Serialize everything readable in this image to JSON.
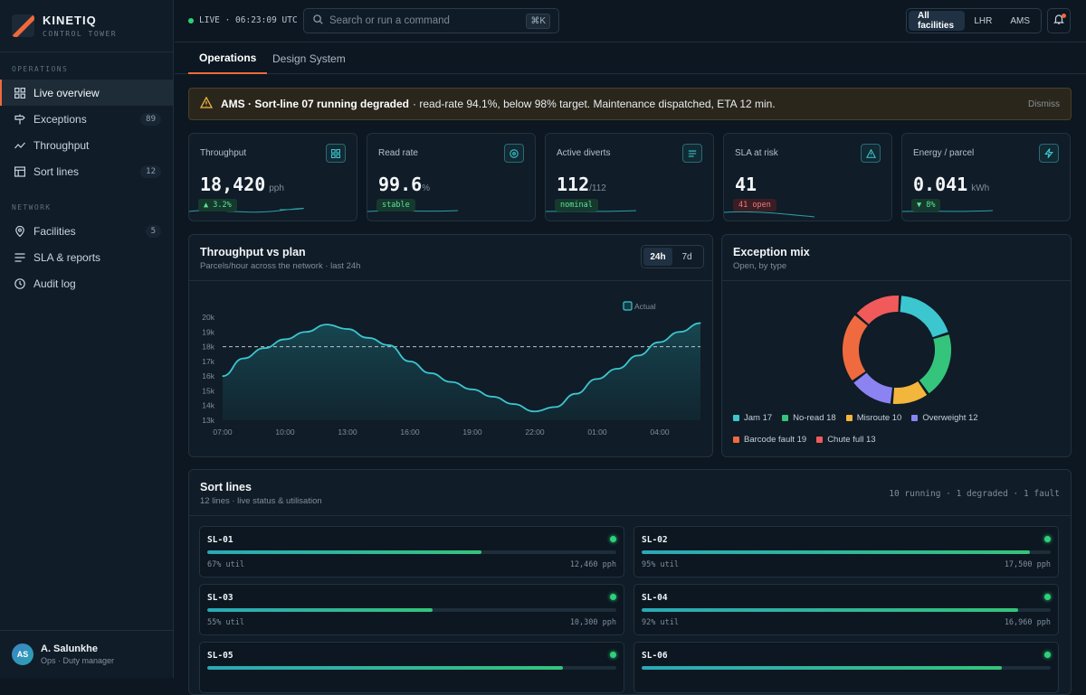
{
  "brand": {
    "name": "KINETIQ",
    "subtitle": "CONTROL TOWER"
  },
  "sidebar": {
    "sections": [
      {
        "label": "OPERATIONS",
        "items": [
          {
            "label": "Live overview",
            "icon": "grid-icon",
            "active": true
          },
          {
            "label": "Exceptions",
            "icon": "signpost-icon",
            "badge": "89"
          },
          {
            "label": "Throughput",
            "icon": "trend-icon"
          },
          {
            "label": "Sort lines",
            "icon": "table-icon",
            "badge": "12"
          }
        ]
      },
      {
        "label": "NETWORK",
        "items": [
          {
            "label": "Facilities",
            "icon": "pin-icon",
            "badge": "5"
          },
          {
            "label": "SLA & reports",
            "icon": "list-icon"
          },
          {
            "label": "Audit log",
            "icon": "clock-icon"
          }
        ]
      }
    ],
    "user": {
      "initials": "AS",
      "name": "A. Salunkhe",
      "role": "Ops · Duty manager"
    }
  },
  "topbar": {
    "live_text": "LIVE · 06:23:09 UTC",
    "search_placeholder": "Search or run a command",
    "search_shortcut": "⌘K",
    "facilities": [
      {
        "label": "All facilities",
        "active": true
      },
      {
        "label": "LHR"
      },
      {
        "label": "AMS"
      }
    ]
  },
  "tabs": [
    {
      "label": "Operations",
      "active": true
    },
    {
      "label": "Design System"
    }
  ],
  "alert": {
    "title": "AMS · Sort-line 07 running degraded",
    "message": "· read-rate 94.1%, below 98% target. Maintenance dispatched, ETA 12 min.",
    "dismiss": "Dismiss"
  },
  "kpis": [
    {
      "label": "Throughput",
      "value": "18,420",
      "unit": "pph",
      "pill": "▲ 3.2%",
      "pill_style": "green",
      "icon": "grid-icon"
    },
    {
      "label": "Read rate",
      "value": "99.6",
      "unit": "%",
      "pill": "stable",
      "pill_style": "green",
      "icon": "target-icon"
    },
    {
      "label": "Active diverts",
      "value": "112",
      "unit": "/112",
      "pill": "nominal",
      "pill_style": "green",
      "icon": "list-icon"
    },
    {
      "label": "SLA at risk",
      "value": "41",
      "unit": "",
      "pill": "41 open",
      "pill_style": "red",
      "icon": "warning-icon"
    },
    {
      "label": "Energy / parcel",
      "value": "0.041",
      "unit": "kWh",
      "pill": "▼ 8%",
      "pill_style": "green",
      "icon": "bolt-icon"
    }
  ],
  "throughput_panel": {
    "title": "Throughput vs plan",
    "subtitle": "Parcels/hour across the network · last 24h",
    "ranges": [
      {
        "label": "24h",
        "active": true
      },
      {
        "label": "7d"
      }
    ]
  },
  "exception_panel": {
    "title": "Exception mix",
    "subtitle": "Open, by type"
  },
  "sort_panel": {
    "title": "Sort lines",
    "subtitle": "12 lines · live status & utilisation",
    "summary": "10 running · 1 degraded · 1 fault",
    "lines": [
      {
        "id": "SL-01",
        "util": 0.67,
        "util_label": "67% util",
        "pph": "12,460 pph"
      },
      {
        "id": "SL-02",
        "util": 0.95,
        "util_label": "95% util",
        "pph": "17,500 pph"
      },
      {
        "id": "SL-03",
        "util": 0.55,
        "util_label": "55% util",
        "pph": "10,300 pph"
      },
      {
        "id": "SL-04",
        "util": 0.92,
        "util_label": "92% util",
        "pph": "16,960 pph"
      },
      {
        "id": "SL-05",
        "util": 0.87,
        "util_label": "",
        "pph": ""
      },
      {
        "id": "SL-06",
        "util": 0.88,
        "util_label": "",
        "pph": ""
      }
    ]
  },
  "colors": {
    "accent": "#ef6a3a",
    "teal": "#3cc6d0",
    "ok": "#2fd07a",
    "bad": "#f07a84"
  },
  "chart_data": [
    {
      "type": "area",
      "title": "Throughput vs plan",
      "x_ticks": [
        "07:00",
        "10:00",
        "13:00",
        "16:00",
        "19:00",
        "22:00",
        "01:00",
        "04:00"
      ],
      "y_ticks": [
        "13k",
        "14k",
        "15k",
        "16k",
        "17k",
        "18k",
        "19k",
        "20k"
      ],
      "ylim": [
        13000,
        20000
      ],
      "plan": 18000,
      "legend": [
        "Actual"
      ],
      "series": [
        {
          "name": "Actual",
          "x": [
            0,
            1,
            2,
            3,
            4,
            5,
            6,
            7,
            8,
            9,
            10,
            11,
            12,
            13,
            14,
            15,
            16,
            17,
            18,
            19,
            20,
            21,
            22,
            23
          ],
          "values": [
            16000,
            17200,
            17900,
            18500,
            19000,
            19500,
            19200,
            18600,
            18100,
            17000,
            16200,
            15600,
            15100,
            14600,
            14100,
            13600,
            13900,
            14800,
            15800,
            16500,
            17400,
            18300,
            19000,
            19600
          ]
        }
      ]
    },
    {
      "type": "pie",
      "title": "Exception mix",
      "labels": [
        "Jam",
        "No-read",
        "Misroute",
        "Overweight",
        "Barcode fault",
        "Chute full"
      ],
      "values": [
        17,
        18,
        10,
        12,
        19,
        13
      ],
      "legend_labels": [
        "Jam 17",
        "No-read 18",
        "Misroute 10",
        "Overweight 12",
        "Barcode fault 19",
        "Chute full 13"
      ],
      "colors": [
        "#3cc6d0",
        "#34c47c",
        "#f2b63c",
        "#8b83f2",
        "#f06a3f",
        "#f15a5a"
      ]
    }
  ]
}
